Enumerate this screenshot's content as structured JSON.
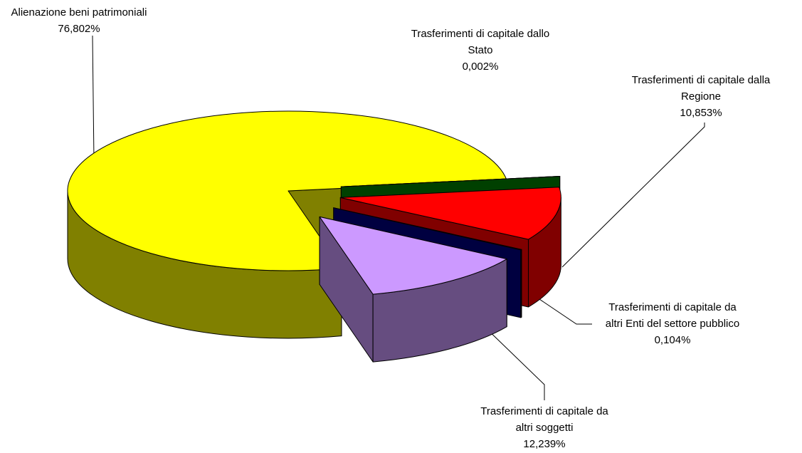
{
  "chart_data": {
    "type": "pie",
    "categories": [
      "Alienazione beni patrimoniali",
      "Trasferimenti di capitale dallo\nStato",
      "Trasferimenti di capitale dalla\nRegione",
      "Trasferimenti di capitale da\naltri Enti del settore pubblico",
      "Trasferimenti di capitale da\naltri soggetti"
    ],
    "values": [
      76.802,
      0.002,
      10.853,
      0.104,
      12.239
    ],
    "value_labels": [
      "76,802%",
      "0,002%",
      "10,853%",
      "0,104%",
      "12,239%"
    ],
    "colors": [
      "#ffff00",
      "#008000",
      "#ff0000",
      "#000080",
      "#cc99ff"
    ],
    "three_d": true,
    "exploded": true
  }
}
